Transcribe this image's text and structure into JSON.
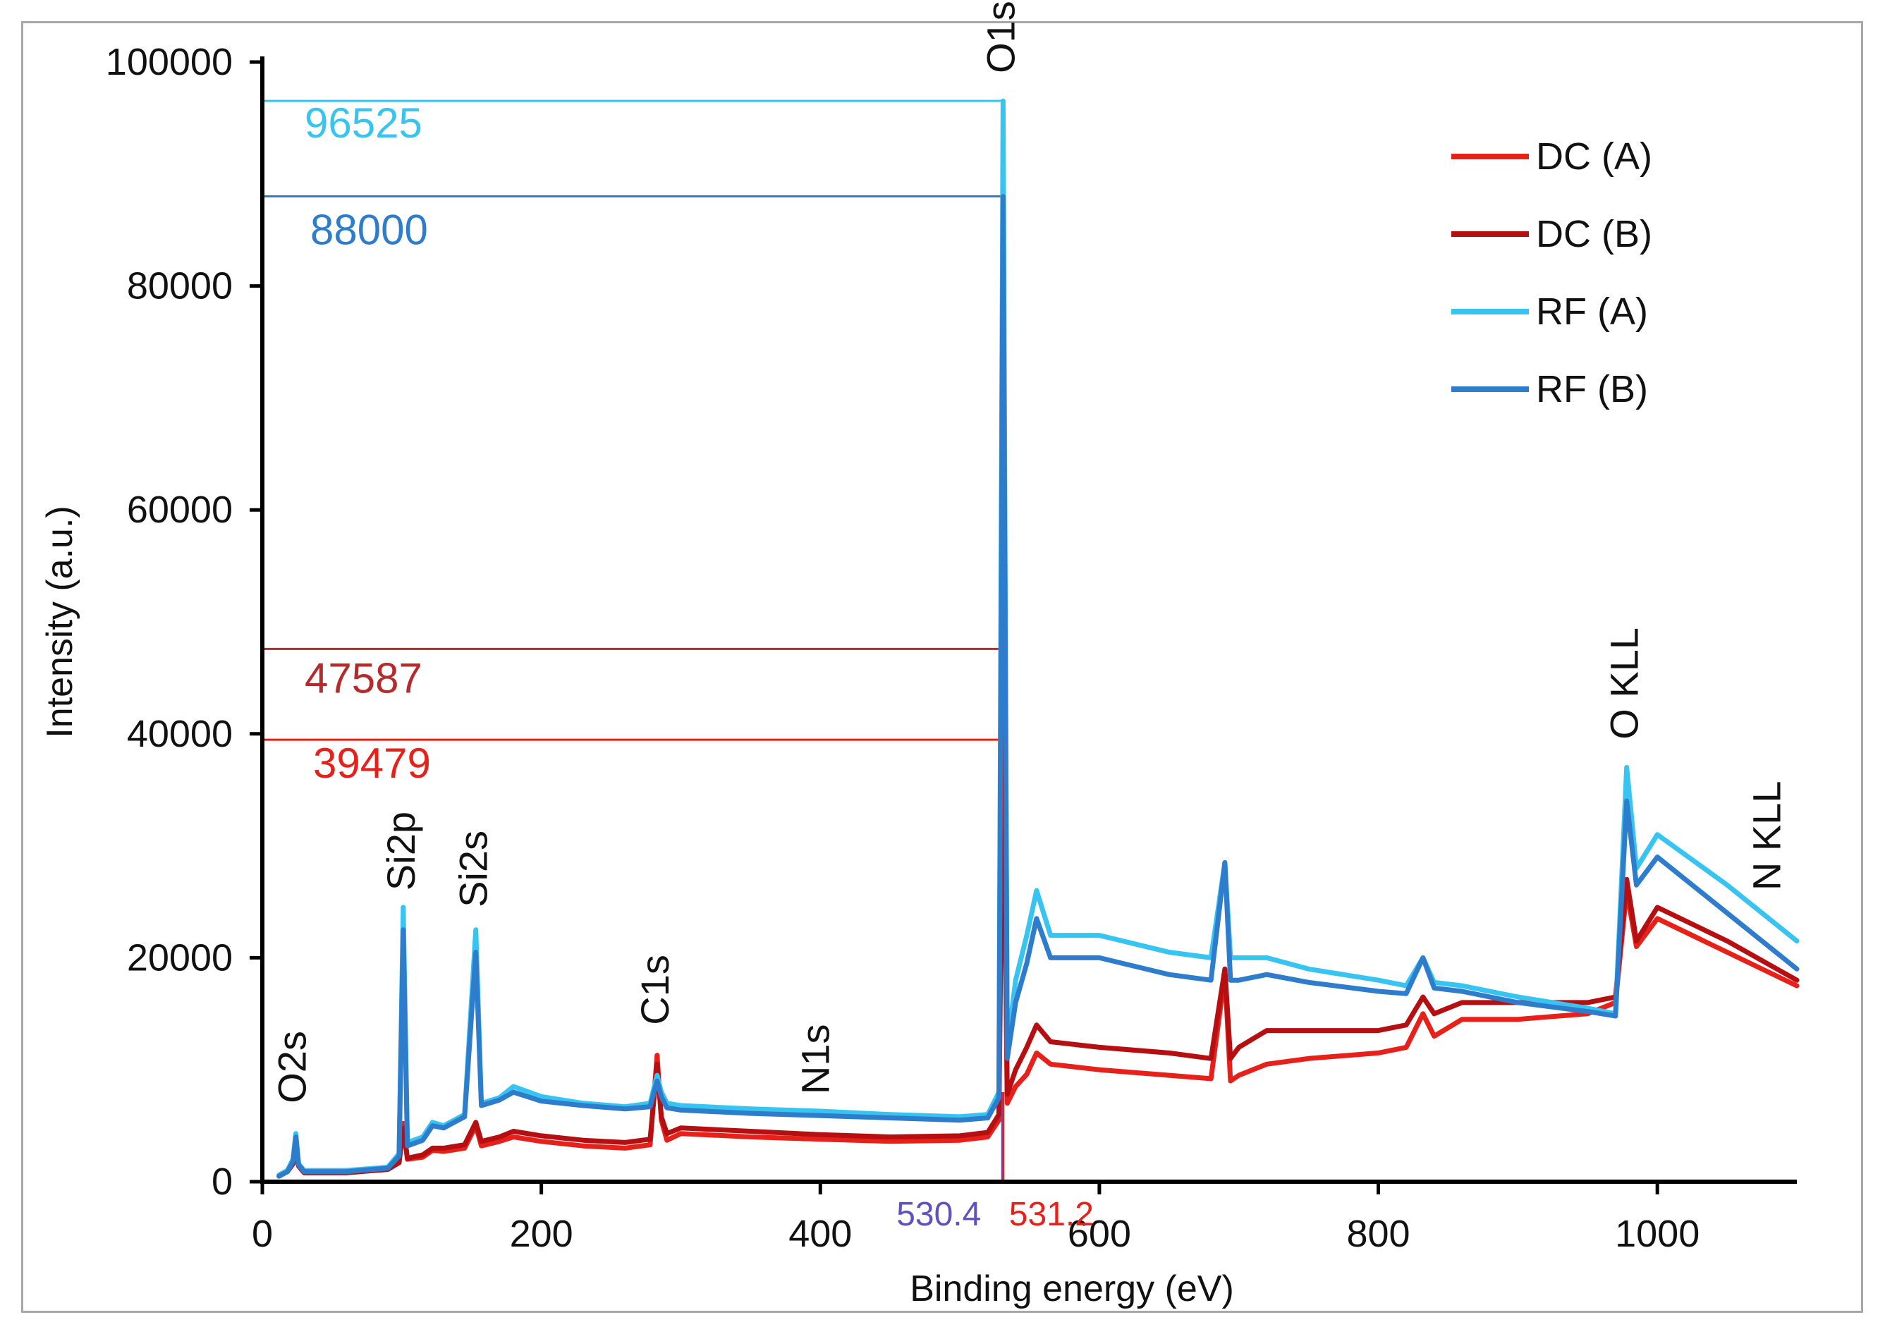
{
  "chart_data": {
    "type": "line",
    "title": "",
    "xlabel": "Binding energy (eV)",
    "ylabel": "Intensity (a.u.)",
    "xlim": [
      0,
      1100
    ],
    "ylim": [
      0,
      100000
    ],
    "x_ticks": [
      {
        "value": 0,
        "label": "0"
      },
      {
        "value": 200,
        "label": "200"
      },
      {
        "value": 400,
        "label": "400"
      },
      {
        "value": 600,
        "label": "600"
      },
      {
        "value": 800,
        "label": "800"
      },
      {
        "value": 1000,
        "label": "1000"
      }
    ],
    "y_ticks": [
      {
        "value": 0,
        "label": "0"
      },
      {
        "value": 20000,
        "label": "20000"
      },
      {
        "value": 40000,
        "label": "40000"
      },
      {
        "value": 60000,
        "label": "60000"
      },
      {
        "value": 80000,
        "label": "80000"
      },
      {
        "value": 100000,
        "label": "100000"
      }
    ],
    "legend_position": "top-right",
    "series": [
      {
        "name": "DC (A)",
        "color": "#e8201a",
        "points": [
          [
            12,
            500
          ],
          [
            18,
            900
          ],
          [
            22,
            1600
          ],
          [
            24,
            3000
          ],
          [
            26,
            1400
          ],
          [
            30,
            800
          ],
          [
            60,
            800
          ],
          [
            90,
            1100
          ],
          [
            98,
            1700
          ],
          [
            101,
            5200
          ],
          [
            104,
            2000
          ],
          [
            115,
            2200
          ],
          [
            122,
            2800
          ],
          [
            130,
            2700
          ],
          [
            145,
            3000
          ],
          [
            153,
            5000
          ],
          [
            157,
            3200
          ],
          [
            170,
            3600
          ],
          [
            180,
            4000
          ],
          [
            200,
            3600
          ],
          [
            230,
            3200
          ],
          [
            260,
            3000
          ],
          [
            278,
            3300
          ],
          [
            283,
            11300
          ],
          [
            286,
            5500
          ],
          [
            290,
            3700
          ],
          [
            300,
            4300
          ],
          [
            350,
            4000
          ],
          [
            400,
            3800
          ],
          [
            450,
            3600
          ],
          [
            500,
            3700
          ],
          [
            520,
            4000
          ],
          [
            528,
            5500
          ],
          [
            531,
            39479
          ],
          [
            534,
            7000
          ],
          [
            540,
            8500
          ],
          [
            548,
            9600
          ],
          [
            555,
            11500
          ],
          [
            565,
            10500
          ],
          [
            600,
            10000
          ],
          [
            650,
            9500
          ],
          [
            680,
            9200
          ],
          [
            690,
            18500
          ],
          [
            694,
            9000
          ],
          [
            700,
            9500
          ],
          [
            720,
            10500
          ],
          [
            750,
            11000
          ],
          [
            800,
            11500
          ],
          [
            820,
            12000
          ],
          [
            832,
            15000
          ],
          [
            840,
            13000
          ],
          [
            860,
            14500
          ],
          [
            900,
            14500
          ],
          [
            950,
            15000
          ],
          [
            970,
            16000
          ],
          [
            978,
            26000
          ],
          [
            985,
            21000
          ],
          [
            1000,
            23500
          ],
          [
            1050,
            20500
          ],
          [
            1100,
            17500
          ]
        ]
      },
      {
        "name": "DC (B)",
        "color": "#b50f12",
        "points": [
          [
            12,
            500
          ],
          [
            18,
            900
          ],
          [
            22,
            1600
          ],
          [
            24,
            2900
          ],
          [
            26,
            1400
          ],
          [
            30,
            800
          ],
          [
            60,
            800
          ],
          [
            90,
            1100
          ],
          [
            98,
            1700
          ],
          [
            101,
            4800
          ],
          [
            104,
            2100
          ],
          [
            115,
            2400
          ],
          [
            122,
            3000
          ],
          [
            130,
            3000
          ],
          [
            145,
            3300
          ],
          [
            153,
            5300
          ],
          [
            157,
            3600
          ],
          [
            170,
            4000
          ],
          [
            180,
            4500
          ],
          [
            200,
            4100
          ],
          [
            230,
            3700
          ],
          [
            260,
            3500
          ],
          [
            278,
            3800
          ],
          [
            283,
            10500
          ],
          [
            286,
            5800
          ],
          [
            290,
            4300
          ],
          [
            300,
            4800
          ],
          [
            350,
            4500
          ],
          [
            400,
            4200
          ],
          [
            450,
            4000
          ],
          [
            500,
            4100
          ],
          [
            520,
            4400
          ],
          [
            528,
            6000
          ],
          [
            531,
            47587
          ],
          [
            534,
            7800
          ],
          [
            540,
            10000
          ],
          [
            548,
            12000
          ],
          [
            555,
            14000
          ],
          [
            565,
            12500
          ],
          [
            600,
            12000
          ],
          [
            650,
            11500
          ],
          [
            680,
            11000
          ],
          [
            690,
            19000
          ],
          [
            694,
            11000
          ],
          [
            700,
            12000
          ],
          [
            720,
            13500
          ],
          [
            750,
            13500
          ],
          [
            800,
            13500
          ],
          [
            820,
            14000
          ],
          [
            832,
            16500
          ],
          [
            840,
            15000
          ],
          [
            860,
            16000
          ],
          [
            900,
            16000
          ],
          [
            950,
            16000
          ],
          [
            970,
            16500
          ],
          [
            978,
            27000
          ],
          [
            985,
            21500
          ],
          [
            1000,
            24500
          ],
          [
            1050,
            21500
          ],
          [
            1100,
            18000
          ]
        ]
      },
      {
        "name": "RF (A)",
        "color": "#38c4f0",
        "points": [
          [
            12,
            600
          ],
          [
            18,
            1000
          ],
          [
            22,
            2000
          ],
          [
            24,
            4300
          ],
          [
            26,
            1600
          ],
          [
            30,
            1000
          ],
          [
            60,
            1000
          ],
          [
            90,
            1300
          ],
          [
            98,
            2500
          ],
          [
            101,
            24500
          ],
          [
            104,
            3500
          ],
          [
            115,
            4000
          ],
          [
            122,
            5300
          ],
          [
            130,
            5000
          ],
          [
            145,
            6000
          ],
          [
            153,
            22500
          ],
          [
            157,
            7000
          ],
          [
            170,
            7500
          ],
          [
            180,
            8500
          ],
          [
            200,
            7600
          ],
          [
            230,
            7000
          ],
          [
            260,
            6700
          ],
          [
            278,
            7000
          ],
          [
            283,
            9500
          ],
          [
            286,
            8000
          ],
          [
            290,
            7000
          ],
          [
            300,
            6800
          ],
          [
            350,
            6500
          ],
          [
            400,
            6300
          ],
          [
            450,
            6000
          ],
          [
            500,
            5800
          ],
          [
            520,
            6000
          ],
          [
            528,
            8000
          ],
          [
            531,
            96525
          ],
          [
            534,
            12000
          ],
          [
            540,
            18000
          ],
          [
            548,
            22000
          ],
          [
            555,
            26000
          ],
          [
            565,
            22000
          ],
          [
            600,
            22000
          ],
          [
            650,
            20500
          ],
          [
            680,
            20000
          ],
          [
            690,
            28500
          ],
          [
            694,
            20000
          ],
          [
            700,
            20000
          ],
          [
            720,
            20000
          ],
          [
            750,
            19000
          ],
          [
            800,
            18000
          ],
          [
            820,
            17500
          ],
          [
            832,
            20000
          ],
          [
            840,
            17800
          ],
          [
            860,
            17500
          ],
          [
            900,
            16500
          ],
          [
            950,
            15500
          ],
          [
            970,
            15000
          ],
          [
            978,
            37000
          ],
          [
            985,
            28000
          ],
          [
            1000,
            31000
          ],
          [
            1050,
            26500
          ],
          [
            1100,
            21500
          ]
        ]
      },
      {
        "name": "RF (B)",
        "color": "#2e7ccc",
        "points": [
          [
            12,
            500
          ],
          [
            18,
            900
          ],
          [
            22,
            1800
          ],
          [
            24,
            4000
          ],
          [
            26,
            1500
          ],
          [
            30,
            900
          ],
          [
            60,
            900
          ],
          [
            90,
            1200
          ],
          [
            98,
            2300
          ],
          [
            101,
            22500
          ],
          [
            104,
            3200
          ],
          [
            115,
            3700
          ],
          [
            122,
            5000
          ],
          [
            130,
            4800
          ],
          [
            145,
            5800
          ],
          [
            153,
            20500
          ],
          [
            157,
            6800
          ],
          [
            170,
            7300
          ],
          [
            180,
            8000
          ],
          [
            200,
            7200
          ],
          [
            230,
            6800
          ],
          [
            260,
            6500
          ],
          [
            278,
            6700
          ],
          [
            283,
            9000
          ],
          [
            286,
            7600
          ],
          [
            290,
            6600
          ],
          [
            300,
            6400
          ],
          [
            350,
            6100
          ],
          [
            400,
            5900
          ],
          [
            450,
            5700
          ],
          [
            500,
            5500
          ],
          [
            520,
            5700
          ],
          [
            528,
            7500
          ],
          [
            531,
            88000
          ],
          [
            534,
            11000
          ],
          [
            540,
            16000
          ],
          [
            548,
            19500
          ],
          [
            555,
            23500
          ],
          [
            565,
            20000
          ],
          [
            600,
            20000
          ],
          [
            650,
            18500
          ],
          [
            680,
            18000
          ],
          [
            690,
            28500
          ],
          [
            694,
            18000
          ],
          [
            700,
            18000
          ],
          [
            720,
            18500
          ],
          [
            750,
            17800
          ],
          [
            800,
            17000
          ],
          [
            820,
            16800
          ],
          [
            832,
            20000
          ],
          [
            840,
            17300
          ],
          [
            860,
            17000
          ],
          [
            900,
            16000
          ],
          [
            950,
            15200
          ],
          [
            970,
            14800
          ],
          [
            978,
            34000
          ],
          [
            985,
            26500
          ],
          [
            1000,
            29000
          ],
          [
            1050,
            24000
          ],
          [
            1100,
            19000
          ]
        ]
      }
    ],
    "reference_lines": [
      {
        "value": 96525,
        "label": "96525",
        "color": "#38c4f0"
      },
      {
        "value": 88000,
        "label": "88000",
        "color": "#2e7ccc"
      },
      {
        "value": 47587,
        "label": "47587",
        "color": "#b52a2a"
      },
      {
        "value": 39479,
        "label": "39479",
        "color": "#e8201a"
      }
    ],
    "energy_markers": [
      {
        "value": 530.4,
        "label": "530.4",
        "color": "#6050c0"
      },
      {
        "value": 531.2,
        "label": "531.2",
        "color": "#e8201a"
      }
    ],
    "peak_labels": [
      {
        "label": "O2s",
        "x": 23,
        "y": 7000
      },
      {
        "label": "Si2p",
        "x": 101,
        "y": 26000
      },
      {
        "label": "Si2s",
        "x": 153,
        "y": 24500
      },
      {
        "label": "C1s",
        "x": 283,
        "y": 14000
      },
      {
        "label": "N1s",
        "x": 398,
        "y": 7800
      },
      {
        "label": "O1s",
        "x": 531,
        "y": 99000
      },
      {
        "label": "O KLL",
        "x": 978,
        "y": 39500
      },
      {
        "label": "N KLL",
        "x": 1080,
        "y": 26000
      }
    ]
  }
}
